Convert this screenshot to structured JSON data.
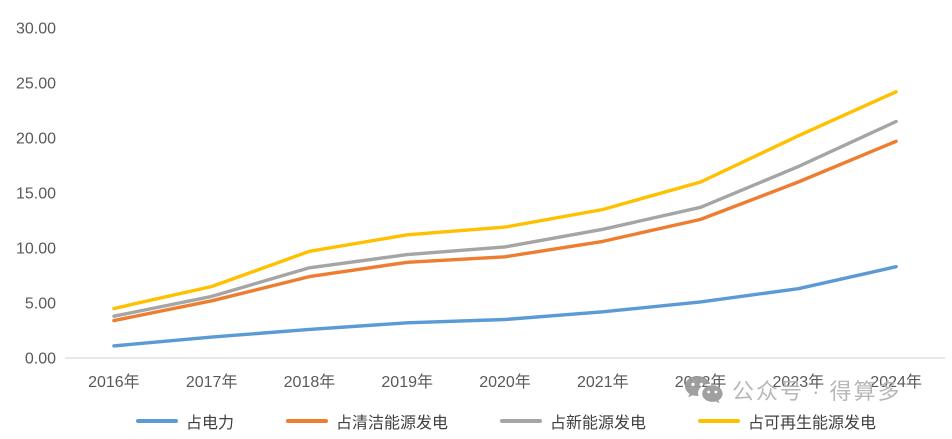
{
  "watermark": {
    "icon": "wechat-icon",
    "text": "公众号 · 得算多"
  },
  "colors": {
    "axis_text": "#595959",
    "axis_line": "#d9d9d9",
    "legend_text": "#3f3f3f",
    "watermark_text": "#b4b4b4",
    "watermark_icon": "#9b9b9b",
    "background": "#ffffff"
  },
  "chart_data": {
    "type": "line",
    "title": "",
    "xlabel": "",
    "ylabel": "",
    "grid": false,
    "legend_position": "bottom",
    "ylim": [
      0,
      30
    ],
    "y_tick_step": 5,
    "y_tick_labels": [
      "0.00",
      "5.00",
      "10.00",
      "15.00",
      "20.00",
      "25.00",
      "30.00"
    ],
    "categories": [
      "2016年",
      "2017年",
      "2018年",
      "2019年",
      "2020年",
      "2021年",
      "2022年",
      "2023年",
      "2024年"
    ],
    "series": [
      {
        "name": "占电力",
        "color": "#5B9BD5",
        "values": [
          1.1,
          1.9,
          2.6,
          3.2,
          3.5,
          4.2,
          5.1,
          6.3,
          8.3
        ]
      },
      {
        "name": "占清洁能源发电",
        "color": "#ED7D31",
        "values": [
          3.4,
          5.2,
          7.4,
          8.7,
          9.2,
          10.6,
          12.6,
          16.0,
          19.7
        ]
      },
      {
        "name": "占新能源发电",
        "color": "#A5A5A5",
        "values": [
          3.8,
          5.6,
          8.2,
          9.4,
          10.1,
          11.7,
          13.7,
          17.4,
          21.5
        ]
      },
      {
        "name": "占可再生能源发电",
        "color": "#FFC000",
        "values": [
          4.5,
          6.5,
          9.7,
          11.2,
          11.9,
          13.5,
          16.0,
          20.2,
          24.2
        ]
      }
    ]
  }
}
